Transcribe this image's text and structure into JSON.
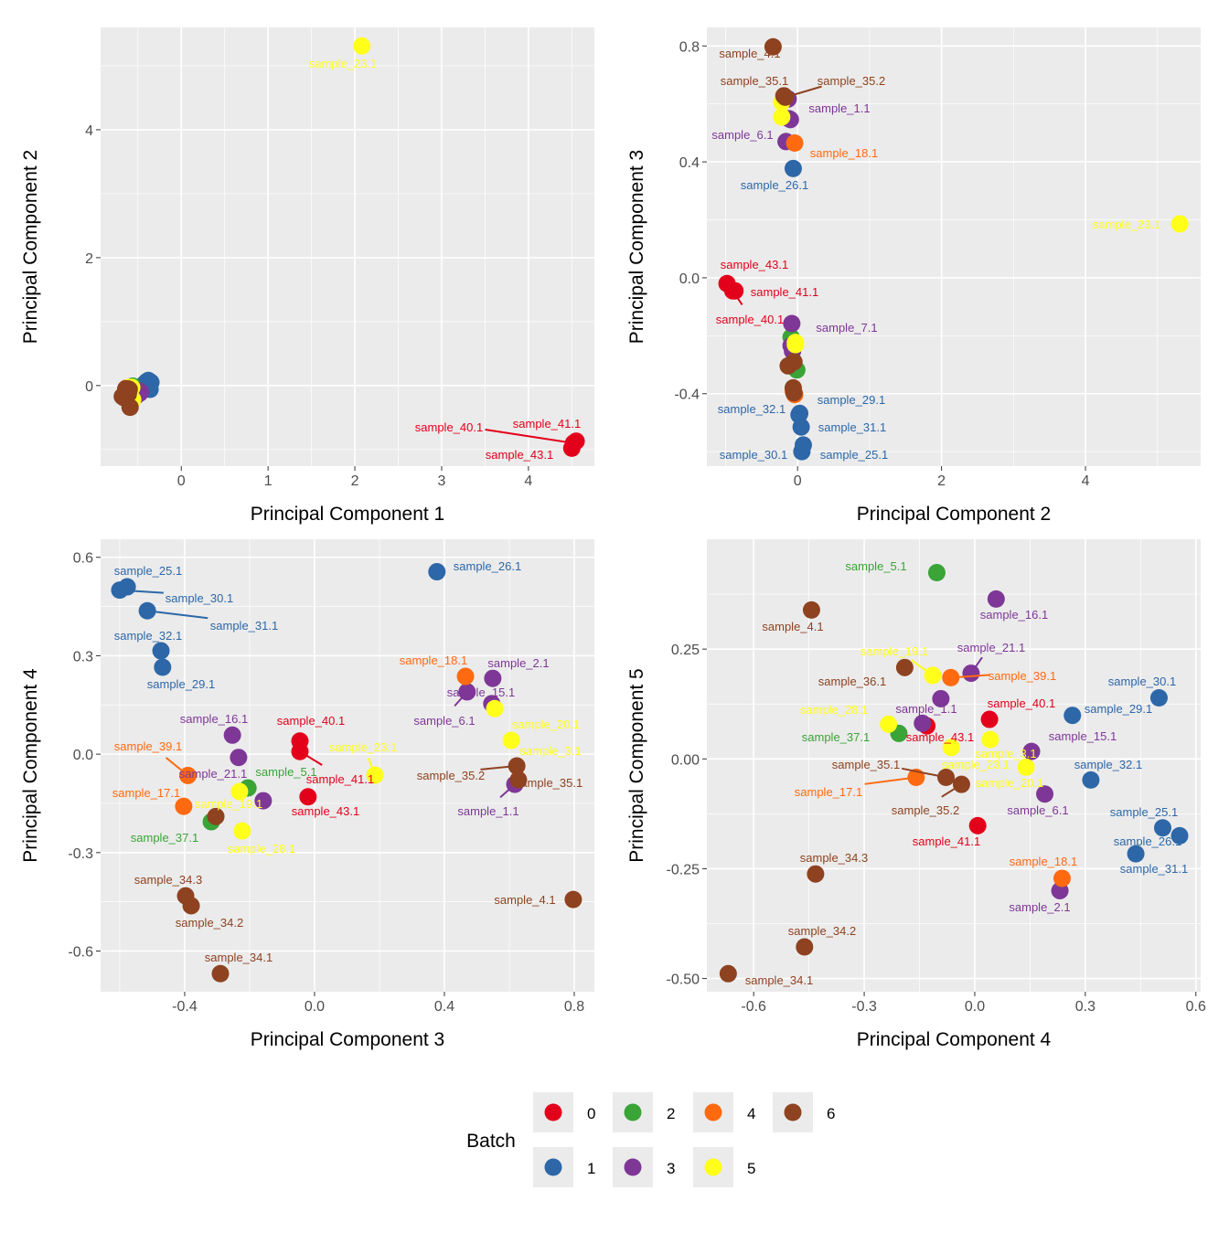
{
  "chart_data": [
    {
      "type": "scatter",
      "x_pc": 1,
      "y_pc": 2,
      "xlabel": "Principal Component 1",
      "ylabel": "Principal Component 2",
      "xlim": [
        -0.93,
        4.76
      ],
      "ylim": [
        -1.26,
        5.6
      ],
      "xticks": [
        0,
        1,
        2,
        3,
        4
      ],
      "xtick_labels": [
        "0",
        "1",
        "2",
        "3",
        "4"
      ],
      "yticks": [
        0,
        2,
        4
      ],
      "ytick_labels": [
        "0",
        "2",
        "4"
      ],
      "grid": true,
      "labeled": [
        "sample_23.1",
        "sample_40.1",
        "sample_41.1",
        "sample_43.1"
      ]
    },
    {
      "type": "scatter",
      "x_pc": 2,
      "y_pc": 3,
      "xlabel": "Principal Component 2",
      "ylabel": "Principal Component 3",
      "xlim": [
        -1.26,
        5.6
      ],
      "ylim": [
        -0.65,
        0.864
      ],
      "xticks": [
        0,
        2,
        4
      ],
      "xtick_labels": [
        "0",
        "2",
        "4"
      ],
      "yticks": [
        -0.4,
        0,
        0.4,
        0.8
      ],
      "ytick_labels": [
        "-0.4",
        "0.0",
        "0.4",
        "0.8"
      ],
      "grid": true,
      "labeled": [
        "sample_4.1",
        "sample_35.1",
        "sample_35.2",
        "sample_1.1",
        "sample_6.1",
        "sample_18.1",
        "sample_26.1",
        "sample_23.1",
        "sample_43.1",
        "sample_41.1",
        "sample_40.1",
        "sample_7.1",
        "sample_29.1",
        "sample_32.1",
        "sample_31.1",
        "sample_30.1",
        "sample_25.1"
      ]
    },
    {
      "type": "scatter",
      "x_pc": 3,
      "y_pc": 4,
      "xlabel": "Principal Component 3",
      "ylabel": "Principal Component 4",
      "xlim": [
        -0.659,
        0.862
      ],
      "ylim": [
        -0.724,
        0.655
      ],
      "xticks": [
        -0.4,
        0,
        0.4,
        0.8
      ],
      "xtick_labels": [
        "-0.4",
        "0.0",
        "0.4",
        "0.8"
      ],
      "yticks": [
        -0.6,
        -0.3,
        0,
        0.3,
        0.6
      ],
      "ytick_labels": [
        "-0.6",
        "-0.3",
        "0.0",
        "0.3",
        "0.6"
      ],
      "grid": true,
      "labeled": [
        "sample_25.1",
        "sample_30.1",
        "sample_31.1",
        "sample_32.1",
        "sample_29.1",
        "sample_26.1",
        "sample_18.1",
        "sample_2.1",
        "sample_15.1",
        "sample_6.1",
        "sample_20.1",
        "sample_3.1",
        "sample_35.2",
        "sample_35.1",
        "sample_1.1",
        "sample_16.1",
        "sample_40.1",
        "sample_39.1",
        "sample_23.1",
        "sample_21.1",
        "sample_5.1",
        "sample_41.1",
        "sample_17.1",
        "sample_19.1",
        "sample_43.1",
        "sample_37.1",
        "sample_28.1",
        "sample_34.3",
        "sample_34.2",
        "sample_34.1",
        "sample_4.1"
      ]
    },
    {
      "type": "scatter",
      "x_pc": 4,
      "y_pc": 5,
      "xlabel": "Principal Component 4",
      "ylabel": "Principal Component 5",
      "xlim": [
        -0.727,
        0.613
      ],
      "ylim": [
        -0.53,
        0.5
      ],
      "xticks": [
        -0.6,
        -0.3,
        0,
        0.3,
        0.6
      ],
      "xtick_labels": [
        "-0.6",
        "-0.3",
        "0.0",
        "0.3",
        "0.6"
      ],
      "yticks": [
        -0.5,
        -0.25,
        0,
        0.25
      ],
      "ytick_labels": [
        "-0.50",
        "-0.25",
        "0.00",
        "0.25"
      ],
      "grid": true,
      "labeled": [
        "sample_5.1",
        "sample_16.1",
        "sample_4.1",
        "sample_19.1",
        "sample_21.1",
        "sample_36.1",
        "sample_39.1",
        "sample_30.1",
        "sample_28.1",
        "sample_1.1",
        "sample_40.1",
        "sample_29.1",
        "sample_37.1",
        "sample_43.1",
        "sample_15.1",
        "sample_3.1",
        "sample_35.1",
        "sample_23.1",
        "sample_32.1",
        "sample_17.1",
        "sample_20.1",
        "sample_35.2",
        "sample_6.1",
        "sample_25.1",
        "sample_41.1",
        "sample_26.1",
        "sample_18.1",
        "sample_34.3",
        "sample_31.1",
        "sample_2.1",
        "sample_34.2",
        "sample_34.1"
      ]
    }
  ],
  "samples": [
    {
      "name": "sample_40.1",
      "batch": "0",
      "pc": [
        4.52,
        -0.9,
        -0.045,
        0.04,
        0.09
      ]
    },
    {
      "name": "sample_41.1",
      "batch": "0",
      "pc": [
        4.55,
        -0.87,
        -0.045,
        0.008,
        -0.152
      ]
    },
    {
      "name": "sample_43.1",
      "batch": "0",
      "pc": [
        4.5,
        -0.98,
        -0.02,
        -0.13,
        0.075
      ]
    },
    {
      "name": "sample_25.1",
      "batch": "1",
      "pc": [
        -0.38,
        0.08,
        -0.577,
        0.51,
        -0.157
      ]
    },
    {
      "name": "sample_26.1",
      "batch": "1",
      "pc": [
        -0.36,
        -0.06,
        0.377,
        0.556,
        -0.175
      ]
    },
    {
      "name": "sample_29.1",
      "batch": "1",
      "pc": [
        -0.42,
        0.03,
        -0.468,
        0.265,
        0.099
      ]
    },
    {
      "name": "sample_30.1",
      "batch": "1",
      "pc": [
        -0.4,
        0.06,
        -0.6,
        0.5,
        0.139
      ]
    },
    {
      "name": "sample_31.1",
      "batch": "1",
      "pc": [
        -0.35,
        0.05,
        -0.515,
        0.437,
        -0.216
      ]
    },
    {
      "name": "sample_32.1",
      "batch": "1",
      "pc": [
        -0.43,
        0.02,
        -0.473,
        0.315,
        -0.048
      ]
    },
    {
      "name": "sample_5.1",
      "batch": "2",
      "pc": [
        -0.55,
        -0.09,
        -0.205,
        -0.103,
        0.424
      ]
    },
    {
      "name": "sample_37.1",
      "batch": "2",
      "pc": [
        -0.56,
        -0.01,
        -0.318,
        -0.206,
        0.058
      ]
    },
    {
      "name": "sample_1.1",
      "batch": "3",
      "pc": [
        -0.5,
        -0.13,
        0.617,
        -0.092,
        0.137
      ]
    },
    {
      "name": "sample_2.1",
      "batch": "3",
      "pc": [
        -0.48,
        -0.12,
        0.549,
        0.231,
        -0.3
      ]
    },
    {
      "name": "sample_6.1",
      "batch": "3",
      "pc": [
        -0.52,
        -0.16,
        0.47,
        0.19,
        -0.08
      ]
    },
    {
      "name": "sample_7.1",
      "batch": "3",
      "pc": [
        -0.5,
        -0.08,
        -0.158,
        -0.142,
        0.081
      ]
    },
    {
      "name": "sample_15.1",
      "batch": "3",
      "pc": [
        -0.47,
        -0.1,
        0.546,
        0.154,
        0.017
      ]
    },
    {
      "name": "sample_16.1",
      "batch": "3",
      "pc": [
        -0.52,
        -0.07,
        -0.253,
        0.058,
        0.364
      ]
    },
    {
      "name": "sample_21.1",
      "batch": "3",
      "pc": [
        -0.51,
        -0.09,
        -0.234,
        -0.01,
        0.195
      ]
    },
    {
      "name": "sample_17.1",
      "batch": "4",
      "pc": [
        -0.62,
        -0.04,
        -0.403,
        -0.159,
        -0.042
      ]
    },
    {
      "name": "sample_18.1",
      "batch": "4",
      "pc": [
        -0.63,
        -0.04,
        0.465,
        0.237,
        -0.272
      ]
    },
    {
      "name": "sample_39.1",
      "batch": "4",
      "pc": [
        -0.64,
        -0.06,
        -0.39,
        -0.065,
        0.185
      ]
    },
    {
      "name": "sample_3.1",
      "batch": "5",
      "pc": [
        -0.58,
        -0.22,
        0.555,
        0.139,
        -0.019
      ]
    },
    {
      "name": "sample_19.1",
      "batch": "5",
      "pc": [
        -0.57,
        -0.03,
        -0.231,
        -0.114,
        0.19
      ]
    },
    {
      "name": "sample_20.1",
      "batch": "5",
      "pc": [
        -0.56,
        -0.22,
        0.606,
        0.042,
        0.044
      ]
    },
    {
      "name": "sample_23.1",
      "batch": "5",
      "pc": [
        2.08,
        5.31,
        0.186,
        -0.064,
        0.026
      ]
    },
    {
      "name": "sample_28.1",
      "batch": "5",
      "pc": [
        -0.6,
        -0.03,
        -0.223,
        -0.234,
        0.079
      ]
    },
    {
      "name": "sample_4.1",
      "batch": "6",
      "pc": [
        -0.59,
        -0.34,
        0.797,
        -0.443,
        0.339
      ]
    },
    {
      "name": "sample_34.1",
      "batch": "6",
      "pc": [
        -0.64,
        -0.05,
        -0.29,
        -0.669,
        -0.489
      ]
    },
    {
      "name": "sample_34.2",
      "batch": "6",
      "pc": [
        -0.6,
        -0.06,
        -0.38,
        -0.462,
        -0.428
      ]
    },
    {
      "name": "sample_34.3",
      "batch": "6",
      "pc": [
        -0.62,
        -0.05,
        -0.397,
        -0.432,
        -0.262
      ]
    },
    {
      "name": "sample_35.1",
      "batch": "6",
      "pc": [
        -0.66,
        -0.19,
        0.628,
        -0.078,
        -0.042
      ]
    },
    {
      "name": "sample_35.2",
      "batch": "6",
      "pc": [
        -0.68,
        -0.17,
        0.623,
        -0.036,
        -0.058
      ]
    },
    {
      "name": "sample_36.1",
      "batch": "6",
      "pc": [
        -0.61,
        -0.13,
        -0.304,
        -0.19,
        0.208
      ]
    }
  ],
  "legend": {
    "title": "Batch",
    "position": "bottom",
    "entries": [
      {
        "label": "0",
        "color": "#E3001B"
      },
      {
        "label": "1",
        "color": "#2D67A8"
      },
      {
        "label": "2",
        "color": "#3AA437"
      },
      {
        "label": "3",
        "color": "#7E3796"
      },
      {
        "label": "4",
        "color": "#FF6A10"
      },
      {
        "label": "5",
        "color": "#FFFF1A"
      },
      {
        "label": "6",
        "color": "#8E4220"
      }
    ]
  }
}
